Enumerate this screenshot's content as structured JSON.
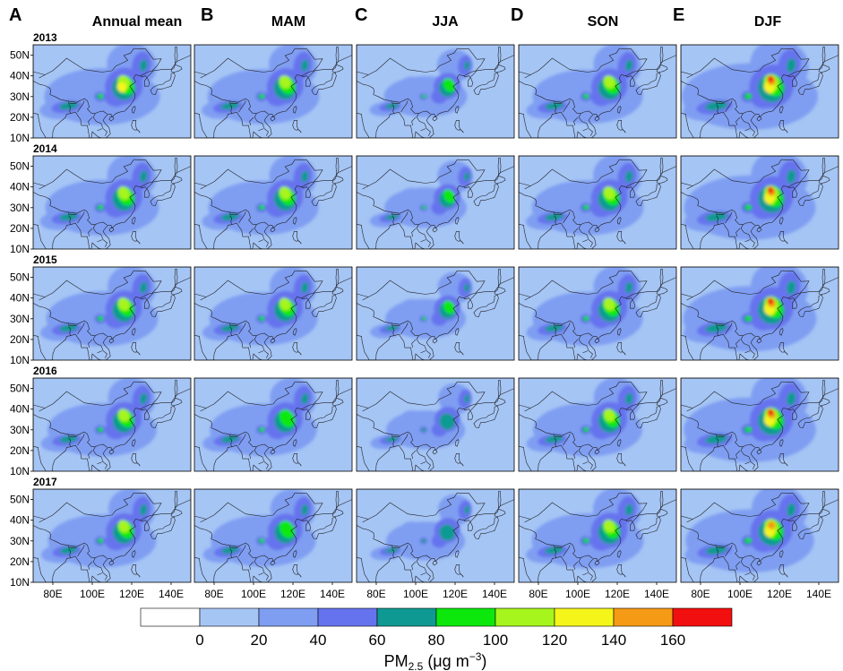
{
  "figure": {
    "columns": [
      {
        "letter": "A",
        "title": "Annual mean"
      },
      {
        "letter": "B",
        "title": "MAM"
      },
      {
        "letter": "C",
        "title": "JJA"
      },
      {
        "letter": "D",
        "title": "SON"
      },
      {
        "letter": "E",
        "title": "DJF"
      }
    ],
    "years": [
      "2013",
      "2014",
      "2015",
      "2016",
      "2017"
    ],
    "lat_ticks": [
      "50N",
      "40N",
      "30N",
      "20N",
      "10N"
    ],
    "lon_ticks": [
      "80E",
      "100E",
      "120E",
      "140E"
    ]
  },
  "colorbar": {
    "levels": [
      0,
      20,
      40,
      60,
      80,
      100,
      120,
      140,
      160
    ],
    "level_labels": [
      "0",
      "20",
      "40",
      "60",
      "80",
      "100",
      "120",
      "140",
      "160"
    ],
    "colors": [
      "#ffffff",
      "#a5c5f5",
      "#7f9ef2",
      "#6673ee",
      "#0e9a92",
      "#0ce80c",
      "#a6f51c",
      "#f5f51a",
      "#f59a15",
      "#f20f0f"
    ],
    "label_main": "PM",
    "label_sub": "2.5",
    "label_unit": " (μg m",
    "label_exp": "−3",
    "label_close": ")"
  },
  "style": {
    "ocean_fill": "#a5c5f5",
    "coast_stroke": "#222222",
    "frame_stroke": "#000000"
  },
  "intensity": [
    [
      0.62,
      0.55,
      0.4,
      0.52,
      1.0
    ],
    [
      0.58,
      0.52,
      0.38,
      0.55,
      0.92
    ],
    [
      0.55,
      0.48,
      0.34,
      0.52,
      0.95
    ],
    [
      0.5,
      0.46,
      0.3,
      0.5,
      0.93
    ],
    [
      0.48,
      0.42,
      0.3,
      0.55,
      0.86
    ]
  ]
}
